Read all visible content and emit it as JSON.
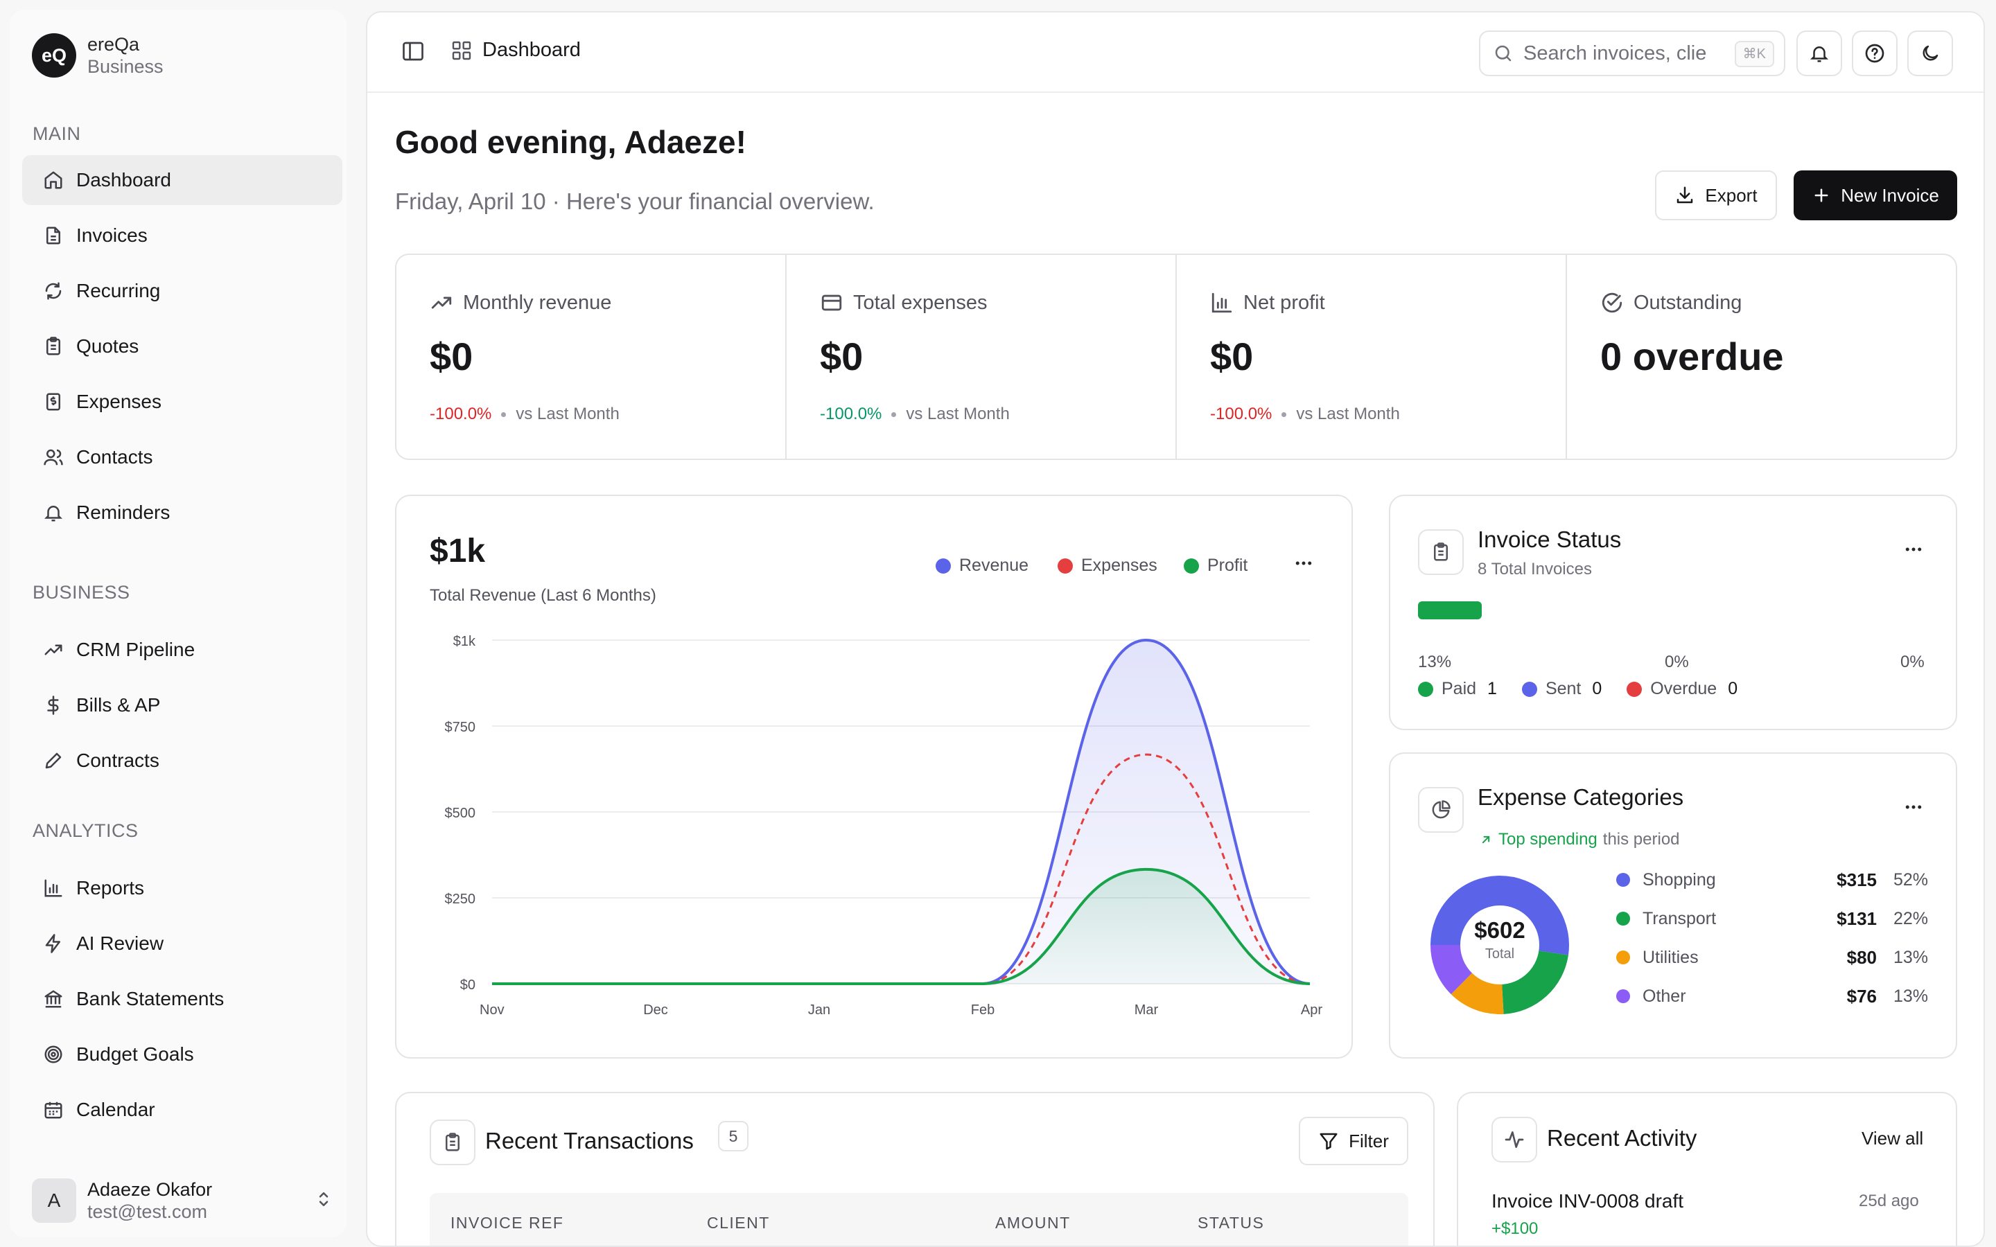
{
  "brand": {
    "logo": "eQ",
    "name": "ereQa",
    "sub": "Business"
  },
  "sidebar": {
    "sections": [
      {
        "label": "MAIN",
        "items": [
          {
            "label": "Dashboard",
            "icon": "home-icon",
            "active": true
          },
          {
            "label": "Invoices",
            "icon": "file-icon"
          },
          {
            "label": "Recurring",
            "icon": "refresh-icon"
          },
          {
            "label": "Quotes",
            "icon": "clipboard-icon"
          },
          {
            "label": "Expenses",
            "icon": "receipt-icon"
          },
          {
            "label": "Contacts",
            "icon": "users-icon"
          },
          {
            "label": "Reminders",
            "icon": "bell-icon"
          }
        ]
      },
      {
        "label": "BUSINESS",
        "items": [
          {
            "label": "CRM Pipeline",
            "icon": "trend-icon"
          },
          {
            "label": "Bills & AP",
            "icon": "dollar-icon"
          },
          {
            "label": "Contracts",
            "icon": "pen-icon"
          }
        ]
      },
      {
        "label": "ANALYTICS",
        "items": [
          {
            "label": "Reports",
            "icon": "bar-chart-icon"
          },
          {
            "label": "AI Review",
            "icon": "zap-icon"
          },
          {
            "label": "Bank Statements",
            "icon": "bank-icon"
          },
          {
            "label": "Budget Goals",
            "icon": "target-icon"
          },
          {
            "label": "Calendar",
            "icon": "calendar-icon"
          }
        ]
      }
    ]
  },
  "user": {
    "initial": "A",
    "name": "Adaeze Okafor",
    "email": "test@test.com"
  },
  "topbar": {
    "crumb": "Dashboard",
    "search_placeholder": "Search invoices, clie",
    "shortcut": "⌘K"
  },
  "page": {
    "greeting": "Good evening, Adaeze!",
    "subtitle": "Friday, April 10 · Here's your financial overview.",
    "export_label": "Export",
    "new_label": "New Invoice"
  },
  "stats": [
    {
      "label": "Monthly revenue",
      "value": "$0",
      "change": "-100.0%",
      "change_color": "#dc2626",
      "vs": "vs Last Month"
    },
    {
      "label": "Total expenses",
      "value": "$0",
      "change": "-100.0%",
      "change_color": "#059669",
      "vs": "vs Last Month"
    },
    {
      "label": "Net profit",
      "value": "$0",
      "change": "-100.0%",
      "change_color": "#dc2626",
      "vs": "vs Last Month"
    },
    {
      "label": "Outstanding",
      "value": "0 overdue"
    }
  ],
  "revenue": {
    "value": "$1k",
    "subtitle": "Total Revenue (Last 6 Months)",
    "legend": [
      {
        "name": "Revenue",
        "color": "#5b63e8"
      },
      {
        "name": "Expenses",
        "color": "#e53e3e"
      },
      {
        "name": "Profit",
        "color": "#16a34a"
      }
    ]
  },
  "chart_data": {
    "type": "area",
    "categories": [
      "Nov",
      "Dec",
      "Jan",
      "Feb",
      "Mar",
      "Apr"
    ],
    "series": [
      {
        "name": "Revenue",
        "values": [
          0,
          0,
          0,
          0,
          1000,
          0
        ],
        "color": "#5b63e8"
      },
      {
        "name": "Expenses",
        "values": [
          0,
          0,
          0,
          0,
          667,
          0
        ],
        "color": "#e53e3e"
      },
      {
        "name": "Profit",
        "values": [
          0,
          0,
          0,
          0,
          333,
          0
        ],
        "color": "#16a34a"
      }
    ],
    "yticks": [
      "$0",
      "$250",
      "$500",
      "$750",
      "$1k"
    ],
    "ylim": [
      0,
      1000
    ],
    "grid": true,
    "legend": "top-right"
  },
  "invoice_status": {
    "title": "Invoice Status",
    "subtitle": "8 Total Invoices",
    "paid_fraction": 0.125,
    "percents": [
      "13%",
      "0%",
      "0%"
    ],
    "legend": [
      {
        "name": "Paid",
        "count": "1",
        "color": "#16a34a"
      },
      {
        "name": "Sent",
        "count": "0",
        "color": "#5b63e8"
      },
      {
        "name": "Overdue",
        "count": "0",
        "color": "#e53e3e"
      }
    ]
  },
  "expense_categories": {
    "title": "Expense Categories",
    "highlight": "Top spending",
    "rest": "this period",
    "total": "$602",
    "total_label": "Total",
    "items": [
      {
        "name": "Shopping",
        "amount": "$315",
        "pct": "52%",
        "value": 315,
        "color": "#5b63e8"
      },
      {
        "name": "Transport",
        "amount": "$131",
        "pct": "22%",
        "value": 131,
        "color": "#16a34a"
      },
      {
        "name": "Utilities",
        "amount": "$80",
        "pct": "13%",
        "value": 80,
        "color": "#f59e0b"
      },
      {
        "name": "Other",
        "amount": "$76",
        "pct": "13%",
        "value": 76,
        "color": "#8b5cf6"
      }
    ]
  },
  "transactions": {
    "title": "Recent Transactions",
    "count": "5",
    "filter_label": "Filter",
    "columns": [
      "INVOICE REF",
      "CLIENT",
      "AMOUNT",
      "STATUS"
    ]
  },
  "activity": {
    "title": "Recent Activity",
    "view_all": "View all",
    "items": [
      {
        "title": "Invoice INV-0008 draft",
        "time": "25d ago",
        "amount": "+$100"
      }
    ]
  }
}
